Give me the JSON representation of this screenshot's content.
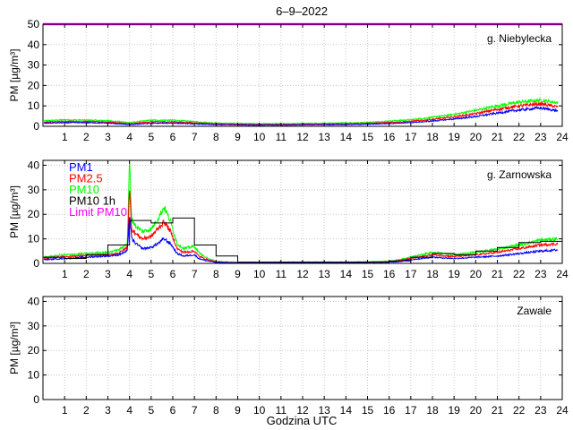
{
  "figure_title": "6–9–2022",
  "xlabel": "Godzina UTC",
  "colors": {
    "pm1": "#0000ff",
    "pm25": "#ff0000",
    "pm10": "#00ff00",
    "pm10_1h": "#000000",
    "limit": "#ff00ff"
  },
  "chart_data": [
    {
      "type": "line",
      "station": "g. Niebylecka",
      "ylabel": "PM [µg/m³]",
      "xlim": [
        0,
        24
      ],
      "ylim": [
        0,
        50
      ],
      "yticks": [
        0,
        10,
        20,
        30,
        40,
        50
      ],
      "xticks": [
        1,
        2,
        3,
        4,
        5,
        6,
        7,
        8,
        9,
        10,
        11,
        12,
        13,
        14,
        15,
        16,
        17,
        18,
        19,
        20,
        21,
        22,
        23,
        24
      ],
      "grid": true,
      "x": [
        0,
        1,
        2,
        3,
        4,
        5,
        6,
        7,
        8,
        9,
        10,
        11,
        12,
        13,
        14,
        15,
        16,
        17,
        18,
        19,
        20,
        21,
        22,
        23,
        23.8
      ],
      "series": [
        {
          "key": "pm1",
          "values": [
            1.5,
            1.8,
            1.8,
            1.6,
            0.8,
            1.5,
            1.6,
            1.2,
            0.8,
            0.7,
            0.6,
            0.6,
            0.7,
            0.8,
            0.9,
            1.0,
            1.4,
            1.8,
            2.6,
            3.6,
            4.8,
            6.5,
            8.0,
            9.0,
            7.5
          ]
        },
        {
          "key": "pm25",
          "values": [
            2.0,
            2.4,
            2.3,
            2.1,
            1.2,
            2.2,
            2.2,
            1.7,
            1.2,
            1.0,
            0.9,
            0.9,
            1.0,
            1.1,
            1.2,
            1.4,
            1.9,
            2.4,
            3.4,
            4.6,
            6.2,
            8.3,
            10.0,
            11.0,
            9.5
          ]
        },
        {
          "key": "pm10",
          "values": [
            2.7,
            3.2,
            3.0,
            2.8,
            1.8,
            3.0,
            3.0,
            2.3,
            1.6,
            1.4,
            1.3,
            1.3,
            1.4,
            1.5,
            1.7,
            1.9,
            2.6,
            3.2,
            4.4,
            5.8,
            7.8,
            10.0,
            11.8,
            12.8,
            11.5
          ]
        }
      ],
      "limit": {
        "key": "limit",
        "value": 50
      }
    },
    {
      "type": "line",
      "station": "g. Zarnowska",
      "ylabel": "PM [µg/m³]",
      "xlim": [
        0,
        24
      ],
      "ylim": [
        0,
        42
      ],
      "yticks": [
        0,
        10,
        20,
        30,
        40
      ],
      "xticks": [
        1,
        2,
        3,
        4,
        5,
        6,
        7,
        8,
        9,
        10,
        11,
        12,
        13,
        14,
        15,
        16,
        17,
        18,
        19,
        20,
        21,
        22,
        23,
        24
      ],
      "grid": true,
      "legend_position": "top-left",
      "legend": [
        {
          "key": "pm1",
          "label": "PM1"
        },
        {
          "key": "pm25",
          "label": "PM2.5"
        },
        {
          "key": "pm10",
          "label": "PM10"
        },
        {
          "key": "pm10_1h",
          "label": "PM10 1h"
        },
        {
          "key": "limit",
          "label": "Limit PM10"
        }
      ],
      "x": [
        0,
        1,
        2,
        3,
        3.5,
        3.9,
        4.0,
        4.1,
        4.3,
        4.6,
        5.0,
        5.3,
        5.6,
        5.9,
        6.2,
        6.5,
        7.0,
        7.2,
        7.5,
        8.0,
        9,
        10,
        11,
        12,
        13,
        14,
        15,
        16,
        16.5,
        17,
        18,
        19,
        20,
        21,
        22,
        23,
        23.8
      ],
      "series": [
        {
          "key": "pm1",
          "values": [
            1.5,
            2.0,
            2.5,
            3.0,
            3.5,
            5.0,
            20.0,
            10.0,
            8.0,
            6.0,
            6.5,
            8.0,
            10.0,
            8.0,
            4.0,
            3.0,
            3.5,
            2.0,
            1.2,
            0.4,
            0.2,
            0.2,
            0.3,
            0.3,
            0.3,
            0.3,
            0.4,
            0.5,
            0.8,
            1.5,
            2.5,
            2.0,
            2.5,
            3.0,
            4.0,
            5.0,
            5.5
          ]
        },
        {
          "key": "pm25",
          "values": [
            2.0,
            2.8,
            3.2,
            3.5,
            4.2,
            6.5,
            30.0,
            14.0,
            12.0,
            10.0,
            11.0,
            14.0,
            17.0,
            13.0,
            6.0,
            4.5,
            5.0,
            3.0,
            1.8,
            0.6,
            0.3,
            0.3,
            0.4,
            0.4,
            0.4,
            0.4,
            0.5,
            0.6,
            1.2,
            2.0,
            3.5,
            2.8,
            3.5,
            4.5,
            6.0,
            7.5,
            8.0
          ]
        },
        {
          "key": "pm10",
          "values": [
            2.5,
            3.5,
            4.0,
            4.5,
            5.5,
            8.0,
            42.0,
            18.0,
            15.0,
            13.0,
            14.0,
            18.0,
            23.0,
            17.0,
            8.0,
            6.0,
            7.0,
            4.5,
            2.5,
            0.8,
            0.4,
            0.4,
            0.5,
            0.5,
            0.5,
            0.5,
            0.7,
            0.8,
            1.6,
            2.6,
            4.5,
            3.6,
            4.5,
            5.8,
            7.5,
            9.5,
            10.0
          ]
        }
      ],
      "pm10_1h": {
        "key": "pm10_1h",
        "values": [
          2.5,
          2.0,
          3.5,
          7.5,
          17.5,
          16.5,
          18.5,
          7.5,
          3.0,
          0.5,
          0.5,
          0.5,
          0.5,
          0.5,
          0.5,
          0.5,
          1.0,
          2.5,
          4.0,
          3.5,
          5.0,
          6.5,
          8.5,
          9.0
        ]
      }
    },
    {
      "type": "line",
      "station": "Zawale",
      "ylabel": "PM [µg/m³]",
      "xlim": [
        0,
        24
      ],
      "ylim": [
        0,
        42
      ],
      "yticks": [
        0,
        10,
        20,
        30,
        40
      ],
      "xticks": [
        1,
        2,
        3,
        4,
        5,
        6,
        7,
        8,
        9,
        10,
        11,
        12,
        13,
        14,
        15,
        16,
        17,
        18,
        19,
        20,
        21,
        22,
        23,
        24
      ],
      "grid": true,
      "series": []
    }
  ]
}
